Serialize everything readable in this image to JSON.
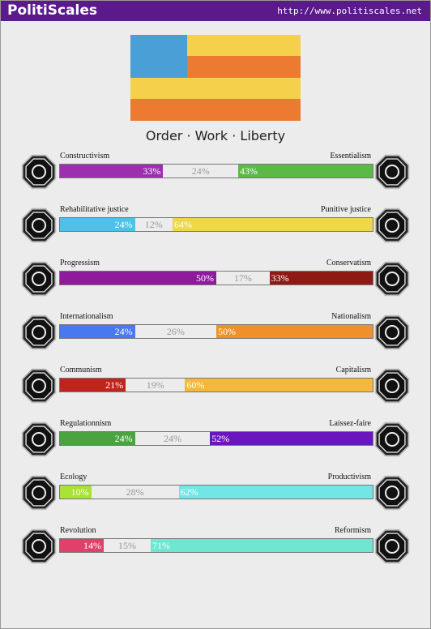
{
  "header": {
    "title": "PolitiScales",
    "url": "http://www.politiscales.net"
  },
  "slogan": "Order · Work · Liberty",
  "scales": [
    {
      "left": "Constructivism",
      "right": "Essentialism",
      "values": [
        33,
        24,
        43
      ],
      "value_labels": [
        "33%",
        "24%",
        "43%"
      ],
      "colors": [
        "#9b2fae",
        "#ececec",
        "#5cb947"
      ]
    },
    {
      "left": "Rehabilitative justice",
      "right": "Punitive justice",
      "values": [
        24,
        12,
        64
      ],
      "value_labels": [
        "24%",
        "12%",
        "64%"
      ],
      "colors": [
        "#4fc1e9",
        "#ececec",
        "#efd64a"
      ]
    },
    {
      "left": "Progressism",
      "right": "Conservatism",
      "values": [
        50,
        17,
        33
      ],
      "value_labels": [
        "50%",
        "17%",
        "33%"
      ],
      "colors": [
        "#8e1a9c",
        "#ececec",
        "#8e1a14"
      ]
    },
    {
      "left": "Internationalism",
      "right": "Nationalism",
      "values": [
        24,
        26,
        50
      ],
      "value_labels": [
        "24%",
        "26%",
        "50%"
      ],
      "colors": [
        "#4a78f0",
        "#ececec",
        "#f0902a"
      ]
    },
    {
      "left": "Communism",
      "right": "Capitalism",
      "values": [
        21,
        19,
        60
      ],
      "value_labels": [
        "21%",
        "19%",
        "60%"
      ],
      "colors": [
        "#c0251b",
        "#ececec",
        "#f5b73c"
      ]
    },
    {
      "left": "Regulationnism",
      "right": "Laissez-faire",
      "values": [
        24,
        24,
        52
      ],
      "value_labels": [
        "24%",
        "24%",
        "52%"
      ],
      "colors": [
        "#4aa241",
        "#ececec",
        "#6a16c0"
      ]
    },
    {
      "left": "Ecology",
      "right": "Productivism",
      "values": [
        10,
        28,
        62
      ],
      "value_labels": [
        "10%",
        "28%",
        "62%"
      ],
      "colors": [
        "#a8e234",
        "#ececec",
        "#72e6e6"
      ]
    },
    {
      "left": "Revolution",
      "right": "Reformism",
      "values": [
        14,
        15,
        71
      ],
      "value_labels": [
        "14%",
        "15%",
        "71%"
      ],
      "colors": [
        "#e0406a",
        "#ececec",
        "#6ee6d0"
      ]
    }
  ]
}
